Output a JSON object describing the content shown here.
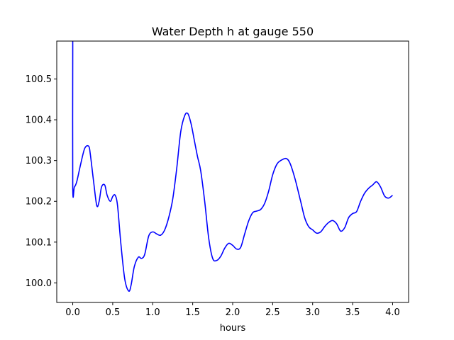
{
  "chart_data": {
    "type": "line",
    "title": "Water Depth h at gauge 550",
    "xlabel": "hours",
    "ylabel": "",
    "xlim": [
      -0.2,
      4.2
    ],
    "ylim": [
      99.952,
      100.593
    ],
    "xticks": [
      0.0,
      0.5,
      1.0,
      1.5,
      2.0,
      2.5,
      3.0,
      3.5,
      4.0
    ],
    "xtick_labels": [
      "0.0",
      "0.5",
      "1.0",
      "1.5",
      "2.0",
      "2.5",
      "3.0",
      "3.5",
      "4.0"
    ],
    "yticks": [
      100.0,
      100.1,
      100.2,
      100.3,
      100.4,
      100.5
    ],
    "ytick_labels": [
      "100.0",
      "100.1",
      "100.2",
      "100.3",
      "100.4",
      "100.5"
    ],
    "grid": false,
    "legend": "none",
    "series": [
      {
        "color": "#0000ff",
        "x": [
          0.0,
          0.0,
          0.0,
          0.02,
          0.05,
          0.1,
          0.15,
          0.2,
          0.22,
          0.26,
          0.3,
          0.33,
          0.36,
          0.4,
          0.43,
          0.47,
          0.5,
          0.53,
          0.56,
          0.6,
          0.65,
          0.7,
          0.73,
          0.77,
          0.82,
          0.86,
          0.9,
          0.95,
          1.0,
          1.05,
          1.1,
          1.15,
          1.2,
          1.25,
          1.3,
          1.35,
          1.4,
          1.44,
          1.48,
          1.52,
          1.56,
          1.6,
          1.65,
          1.7,
          1.75,
          1.8,
          1.85,
          1.9,
          1.95,
          2.0,
          2.05,
          2.1,
          2.15,
          2.2,
          2.25,
          2.3,
          2.35,
          2.4,
          2.45,
          2.5,
          2.55,
          2.6,
          2.67,
          2.72,
          2.78,
          2.85,
          2.9,
          2.95,
          3.0,
          3.05,
          3.1,
          3.15,
          3.2,
          3.25,
          3.3,
          3.35,
          3.4,
          3.45,
          3.5,
          3.55,
          3.6,
          3.65,
          3.7,
          3.75,
          3.8,
          3.85,
          3.9,
          3.95,
          4.0
        ],
        "y": [
          100.567,
          100.567,
          100.235,
          100.235,
          100.248,
          100.292,
          100.33,
          100.335,
          100.315,
          100.25,
          100.19,
          100.2,
          100.235,
          100.24,
          100.215,
          100.2,
          100.212,
          100.215,
          100.19,
          100.1,
          100.01,
          99.98,
          99.995,
          100.04,
          100.063,
          100.06,
          100.07,
          100.115,
          100.125,
          100.12,
          100.117,
          100.13,
          100.16,
          100.205,
          100.28,
          100.37,
          100.41,
          100.415,
          100.39,
          100.35,
          100.31,
          100.275,
          100.2,
          100.11,
          100.06,
          100.055,
          100.065,
          100.085,
          100.097,
          100.092,
          100.083,
          100.087,
          100.12,
          100.152,
          100.172,
          100.176,
          100.18,
          100.195,
          100.225,
          100.265,
          100.29,
          100.3,
          100.305,
          100.292,
          100.255,
          100.2,
          100.16,
          100.138,
          100.13,
          100.122,
          100.125,
          100.138,
          100.148,
          100.153,
          100.145,
          100.127,
          100.135,
          100.16,
          100.17,
          100.175,
          100.2,
          100.22,
          100.232,
          100.24,
          100.248,
          100.235,
          100.213,
          100.208,
          100.215
        ]
      }
    ]
  }
}
